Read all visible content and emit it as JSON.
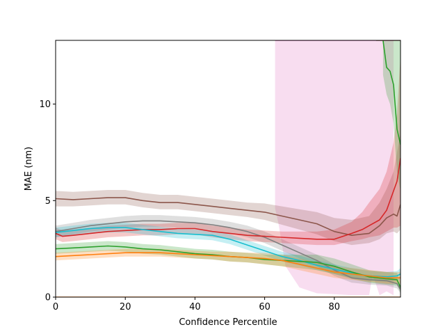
{
  "chart_data": {
    "type": "line",
    "xlabel": "Confidence Percentile",
    "ylabel": "MAE (nm)",
    "xlim": [
      0,
      99
    ],
    "ylim": [
      0,
      13.3
    ],
    "xticks": [
      0,
      20,
      40,
      60,
      80
    ],
    "yticks": [
      0,
      5,
      10
    ],
    "grid": false,
    "legend": "none",
    "series": [
      {
        "color": "#e377c2",
        "x": [
          63,
          64,
          66,
          70,
          75,
          80,
          85,
          88,
          90,
          91,
          93,
          95,
          97
        ],
        "y": [
          13.3,
          13.3,
          13.3,
          13.3,
          13.3,
          13.3,
          13.3,
          13.3,
          13.3,
          13.3,
          13.3,
          13.3,
          13.3
        ],
        "lower": [
          4.6,
          3.8,
          1.6,
          0.5,
          0.2,
          0.15,
          0.1,
          0.1,
          0.1,
          1.2,
          0.1,
          0.3,
          0.1
        ],
        "upper": [
          13.3,
          13.3,
          13.3,
          13.3,
          13.3,
          13.3,
          13.3,
          13.3,
          13.3,
          13.3,
          13.3,
          13.3,
          13.3
        ]
      },
      {
        "color": "#8c564b",
        "x": [
          0,
          5,
          10,
          15,
          20,
          25,
          30,
          35,
          40,
          45,
          50,
          55,
          60,
          65,
          70,
          75,
          80,
          85,
          90,
          93,
          95,
          97,
          98,
          99
        ],
        "y": [
          5.1,
          5.05,
          5.1,
          5.15,
          5.15,
          5.0,
          4.9,
          4.9,
          4.8,
          4.7,
          4.6,
          4.5,
          4.4,
          4.2,
          4.0,
          3.8,
          3.4,
          3.2,
          3.3,
          3.7,
          4.1,
          4.3,
          4.2,
          4.8
        ],
        "lower": [
          4.7,
          4.7,
          4.75,
          4.8,
          4.8,
          4.65,
          4.55,
          4.55,
          4.45,
          4.35,
          4.25,
          4.15,
          4.0,
          3.75,
          3.5,
          3.25,
          2.9,
          2.7,
          2.8,
          3.0,
          3.3,
          3.4,
          3.3,
          3.5
        ],
        "upper": [
          5.5,
          5.45,
          5.5,
          5.55,
          5.55,
          5.4,
          5.3,
          5.3,
          5.2,
          5.1,
          5.0,
          4.9,
          4.85,
          4.7,
          4.55,
          4.4,
          4.1,
          4.0,
          4.2,
          4.9,
          5.6,
          6.5,
          7.5,
          8.5
        ]
      },
      {
        "color": "#7f7f7f",
        "x": [
          0,
          5,
          10,
          15,
          20,
          25,
          30,
          35,
          40,
          45,
          50,
          55,
          60,
          65,
          70,
          75,
          80,
          85,
          90,
          95,
          98,
          99
        ],
        "y": [
          3.4,
          3.55,
          3.7,
          3.8,
          3.9,
          3.95,
          3.95,
          3.9,
          3.85,
          3.75,
          3.6,
          3.4,
          3.1,
          2.7,
          2.3,
          1.9,
          1.4,
          1.0,
          0.9,
          0.85,
          0.7,
          0.4
        ],
        "lower": [
          3.1,
          3.25,
          3.4,
          3.5,
          3.6,
          3.65,
          3.65,
          3.6,
          3.55,
          3.45,
          3.3,
          3.1,
          2.8,
          2.4,
          2.0,
          1.6,
          1.1,
          0.75,
          0.65,
          0.6,
          0.45,
          0.2
        ],
        "upper": [
          3.7,
          3.85,
          4.0,
          4.1,
          4.2,
          4.25,
          4.25,
          4.2,
          4.15,
          4.05,
          3.9,
          3.7,
          3.4,
          3.0,
          2.6,
          2.2,
          1.7,
          1.25,
          1.15,
          1.1,
          0.95,
          0.6
        ]
      },
      {
        "color": "#d62728",
        "x": [
          0,
          2,
          5,
          10,
          15,
          20,
          25,
          30,
          35,
          40,
          45,
          50,
          55,
          60,
          65,
          70,
          75,
          80,
          85,
          88,
          90,
          93,
          95,
          97,
          98,
          99
        ],
        "y": [
          3.3,
          3.15,
          3.2,
          3.3,
          3.4,
          3.45,
          3.5,
          3.5,
          3.55,
          3.55,
          3.4,
          3.3,
          3.2,
          3.15,
          3.1,
          3.05,
          3.0,
          3.0,
          3.3,
          3.5,
          3.7,
          4.0,
          4.5,
          5.5,
          6.0,
          7.2
        ],
        "lower": [
          3.0,
          2.85,
          2.9,
          3.0,
          3.1,
          3.15,
          3.2,
          3.2,
          3.25,
          3.25,
          3.1,
          3.0,
          2.9,
          2.85,
          2.8,
          2.75,
          2.7,
          2.7,
          2.9,
          3.0,
          3.1,
          3.2,
          3.4,
          3.6,
          3.6,
          3.7
        ],
        "upper": [
          3.6,
          3.45,
          3.5,
          3.6,
          3.7,
          3.75,
          3.8,
          3.8,
          3.85,
          3.85,
          3.7,
          3.6,
          3.5,
          3.45,
          3.4,
          3.4,
          3.4,
          3.5,
          3.9,
          4.4,
          4.9,
          5.6,
          6.5,
          8.0,
          9.5,
          12.5
        ]
      },
      {
        "color": "#17becf",
        "x": [
          0,
          5,
          10,
          15,
          20,
          25,
          30,
          35,
          40,
          45,
          50,
          55,
          60,
          65,
          70,
          75,
          80,
          85,
          90,
          95,
          98,
          99
        ],
        "y": [
          3.35,
          3.45,
          3.55,
          3.6,
          3.6,
          3.5,
          3.4,
          3.3,
          3.25,
          3.2,
          3.0,
          2.7,
          2.4,
          2.1,
          1.9,
          1.65,
          1.45,
          1.25,
          1.1,
          1.05,
          1.1,
          1.2
        ],
        "lower": [
          3.1,
          3.2,
          3.3,
          3.35,
          3.35,
          3.25,
          3.15,
          3.05,
          3.0,
          2.95,
          2.75,
          2.45,
          2.15,
          1.85,
          1.65,
          1.4,
          1.2,
          1.0,
          0.85,
          0.8,
          0.85,
          0.9
        ],
        "upper": [
          3.6,
          3.7,
          3.8,
          3.85,
          3.85,
          3.75,
          3.65,
          3.55,
          3.5,
          3.45,
          3.25,
          2.95,
          2.65,
          2.35,
          2.15,
          1.9,
          1.7,
          1.5,
          1.35,
          1.3,
          1.35,
          1.5
        ]
      },
      {
        "color": "#2ca02c",
        "x": [
          0,
          5,
          10,
          15,
          20,
          25,
          30,
          35,
          40,
          45,
          50,
          55,
          60,
          65,
          70,
          75,
          80,
          85,
          90,
          95,
          98,
          99
        ],
        "y": [
          2.5,
          2.55,
          2.6,
          2.65,
          2.6,
          2.5,
          2.45,
          2.35,
          2.25,
          2.2,
          2.1,
          2.05,
          1.95,
          1.9,
          1.85,
          1.8,
          1.6,
          1.3,
          1.05,
          0.95,
          0.9,
          0.5
        ],
        "lower": [
          2.25,
          2.3,
          2.35,
          2.4,
          2.35,
          2.25,
          2.2,
          2.1,
          2.0,
          1.95,
          1.85,
          1.8,
          1.7,
          1.6,
          1.5,
          1.4,
          1.2,
          0.95,
          0.75,
          0.65,
          0.6,
          0.25
        ],
        "upper": [
          2.75,
          2.8,
          2.85,
          2.9,
          2.85,
          2.75,
          2.7,
          2.6,
          2.5,
          2.45,
          2.35,
          2.3,
          2.2,
          2.2,
          2.2,
          2.2,
          2.0,
          1.7,
          1.4,
          1.3,
          1.25,
          0.8
        ]
      },
      {
        "color": "#2ca02c",
        "x": [
          94,
          95,
          96,
          97,
          98,
          99
        ],
        "y": [
          13.3,
          11.9,
          11.7,
          11.0,
          8.7,
          7.9
        ],
        "lower": [
          11.5,
          10.5,
          10.0,
          9.0,
          6.5,
          5.5
        ],
        "upper": [
          13.3,
          13.3,
          13.3,
          13.3,
          13.3,
          13.3
        ]
      },
      {
        "color": "#ff7f0e",
        "x": [
          0,
          5,
          10,
          15,
          20,
          25,
          30,
          35,
          40,
          45,
          50,
          55,
          60,
          65,
          70,
          75,
          80,
          85,
          90,
          95,
          99
        ],
        "y": [
          2.1,
          2.15,
          2.2,
          2.25,
          2.3,
          2.3,
          2.3,
          2.25,
          2.2,
          2.15,
          2.1,
          2.05,
          2.0,
          1.9,
          1.7,
          1.5,
          1.3,
          1.2,
          1.1,
          1.0,
          1.0
        ],
        "lower": [
          1.9,
          1.95,
          2.0,
          2.05,
          2.1,
          2.1,
          2.1,
          2.05,
          2.0,
          1.95,
          1.85,
          1.8,
          1.7,
          1.6,
          1.4,
          1.2,
          1.0,
          0.9,
          0.8,
          0.7,
          0.7
        ],
        "upper": [
          2.3,
          2.35,
          2.4,
          2.45,
          2.5,
          2.5,
          2.5,
          2.45,
          2.4,
          2.35,
          2.35,
          2.3,
          2.3,
          2.2,
          2.0,
          1.8,
          1.6,
          1.5,
          1.4,
          1.3,
          1.3
        ]
      },
      {
        "color": "#8c564b",
        "x": [
          92,
          94,
          96,
          98,
          99
        ],
        "y": [
          13.3,
          13.3,
          13.3,
          13.3,
          13.3
        ],
        "lower": [
          13.3,
          13.3,
          13.3,
          13.3,
          13.3
        ],
        "upper": [
          13.3,
          13.3,
          13.3,
          13.3,
          13.3
        ]
      },
      {
        "color": "#ff7f0e",
        "x": [
          0,
          99
        ],
        "y": [
          0.0,
          0.0
        ],
        "lower": [
          0.0,
          0.0
        ],
        "upper": [
          0.0,
          0.0
        ]
      }
    ]
  }
}
